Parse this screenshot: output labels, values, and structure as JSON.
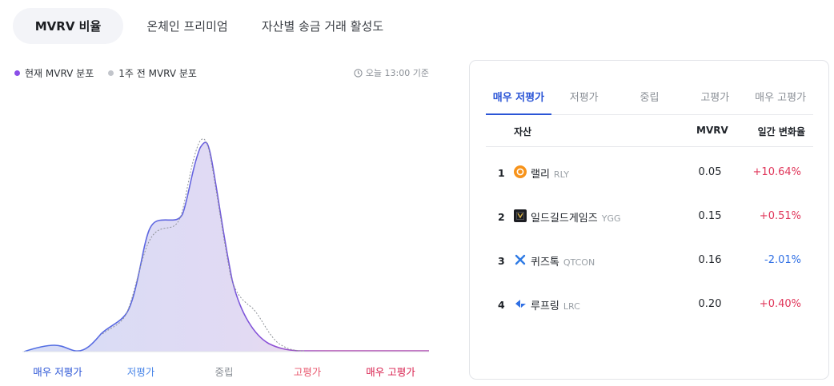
{
  "top_tabs": [
    {
      "label": "MVRV 비율",
      "active": true
    },
    {
      "label": "온체인 프리미엄",
      "active": false
    },
    {
      "label": "자산별 송금 거래 활성도",
      "active": false
    }
  ],
  "legend": {
    "current": {
      "label": "현재 MVRV 분포",
      "color": "#8a4ee8"
    },
    "previous": {
      "label": "1주 전 MVRV 분포",
      "color": "#c2c5cb"
    }
  },
  "timestamp": "오늘 13:00 기준",
  "chart_data": {
    "type": "area",
    "categories": [
      "매우 저평가",
      "저평가",
      "중립",
      "고평가",
      "매우 고평가"
    ],
    "category_colors": [
      "#2b55d6",
      "#4a86e8",
      "#8a8f96",
      "#e8586e",
      "#d81e4c"
    ],
    "series": [
      {
        "name": "현재 MVRV 분포",
        "style": "solid-fill"
      },
      {
        "name": "1주 전 MVRV 분포",
        "style": "dotted"
      }
    ]
  },
  "panel": {
    "tabs": [
      {
        "label": "매우 저평가",
        "active": true
      },
      {
        "label": "저평가",
        "active": false
      },
      {
        "label": "중립",
        "active": false
      },
      {
        "label": "고평가",
        "active": false
      },
      {
        "label": "매우 고평가",
        "active": false
      }
    ],
    "columns": {
      "asset": "자산",
      "mvrv": "MVRV",
      "change": "일간 변화율"
    },
    "rows": [
      {
        "rank": "1",
        "name": "랠리",
        "ticker": "RLY",
        "mvrv": "0.05",
        "change": "+10.64%",
        "direction": "up",
        "icon": "rally-icon"
      },
      {
        "rank": "2",
        "name": "일드길드게임즈",
        "ticker": "YGG",
        "mvrv": "0.15",
        "change": "+0.51%",
        "direction": "up",
        "icon": "ygg-icon"
      },
      {
        "rank": "3",
        "name": "퀴즈톡",
        "ticker": "QTCON",
        "mvrv": "0.16",
        "change": "-2.01%",
        "direction": "down",
        "icon": "quiztok-icon"
      },
      {
        "rank": "4",
        "name": "루프링",
        "ticker": "LRC",
        "mvrv": "0.20",
        "change": "+0.40%",
        "direction": "up",
        "icon": "loopring-icon"
      }
    ],
    "colors": {
      "up": "#e0365a",
      "down": "#2f6fe4"
    }
  }
}
